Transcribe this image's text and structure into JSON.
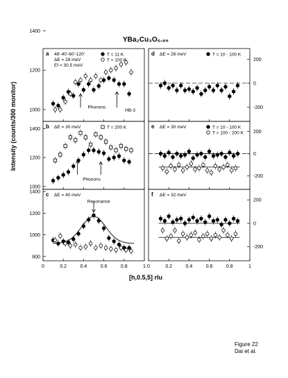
{
  "figure": {
    "title": "YBa₂Cu₃O₆.₉₅",
    "xlabel": "[h,0.5,5] rlu",
    "ylabel": "Intensity (counts/300 monitor)"
  },
  "caption": {
    "figure": "Figure 22",
    "authors": "Dai et al."
  },
  "chart_data": [
    {
      "id": "a",
      "type": "scatter",
      "label": "a",
      "xlim": [
        0,
        1
      ],
      "ylim": [
        940,
        1310
      ],
      "yticks": [
        1000,
        1200,
        1400
      ],
      "axis_side": "left",
      "show_xticklabels": false,
      "notes": [
        "48'-40'-60'-120'",
        "ΔE = 28 meV",
        "Ef = 30.5 meV"
      ],
      "annotations": [
        {
          "text": "Phonons",
          "x": 0.53,
          "y": 1005
        },
        {
          "text": "HB-3",
          "x": 0.86,
          "y": 990
        }
      ],
      "arrows": [
        {
          "x": 0.37,
          "y_from": 1010,
          "y_to": 1080
        },
        {
          "x": 0.73,
          "y_from": 1010,
          "y_to": 1090
        }
      ],
      "legend": [
        {
          "marker": "filled",
          "text": "T = 11 K"
        },
        {
          "marker": "open",
          "text": "T = 100 K"
        }
      ],
      "series": [
        {
          "name": "T = 11 K",
          "marker": "filled",
          "x": [
            0.1,
            0.15,
            0.2,
            0.25,
            0.3,
            0.35,
            0.4,
            0.45,
            0.5,
            0.55,
            0.6,
            0.65,
            0.7,
            0.75,
            0.8,
            0.85
          ],
          "y": [
            1030,
            1020,
            1060,
            1090,
            1070,
            1130,
            1100,
            1130,
            1100,
            1120,
            1150,
            1160,
            1150,
            1130,
            1130,
            1080
          ]
        },
        {
          "name": "T = 100 K",
          "marker": "open",
          "x": [
            0.12,
            0.17,
            0.22,
            0.27,
            0.32,
            0.37,
            0.42,
            0.47,
            0.52,
            0.57,
            0.62,
            0.67,
            0.72,
            0.77,
            0.82,
            0.87
          ],
          "y": [
            1000,
            1000,
            1040,
            1080,
            1140,
            1150,
            1170,
            1150,
            1170,
            1150,
            1190,
            1200,
            1210,
            1230,
            1240,
            1190
          ]
        }
      ]
    },
    {
      "id": "b",
      "type": "scatter",
      "label": "b",
      "xlim": [
        0,
        1
      ],
      "ylim": [
        980,
        1450
      ],
      "yticks": [
        1000,
        1200,
        1400
      ],
      "axis_side": "left",
      "show_xticklabels": false,
      "notes": [
        "ΔE = 30 meV"
      ],
      "annotations": [
        {
          "text": "Phonons",
          "x": 0.48,
          "y": 1040
        }
      ],
      "arrows": [
        {
          "x": 0.34,
          "y_from": 1080,
          "y_to": 1180
        },
        {
          "x": 0.57,
          "y_from": 1080,
          "y_to": 1170
        }
      ],
      "legend": [
        {
          "marker": "open-square",
          "text": "T = 200 K"
        }
      ],
      "series": [
        {
          "name": "T = 11 K",
          "marker": "filled",
          "x": [
            0.1,
            0.15,
            0.2,
            0.25,
            0.3,
            0.35,
            0.4,
            0.45,
            0.5,
            0.55,
            0.6,
            0.65,
            0.7,
            0.75,
            0.8,
            0.85
          ],
          "y": [
            1040,
            1060,
            1080,
            1100,
            1140,
            1180,
            1220,
            1250,
            1250,
            1240,
            1230,
            1190,
            1200,
            1210,
            1180,
            1170
          ]
        },
        {
          "name": "T = 200 K",
          "marker": "open-square",
          "x": [
            0.12,
            0.17,
            0.22,
            0.27,
            0.32,
            0.37,
            0.42,
            0.47,
            0.52,
            0.57,
            0.62,
            0.67,
            0.72,
            0.77,
            0.82,
            0.87
          ],
          "y": [
            1180,
            1220,
            1280,
            1340,
            1320,
            1370,
            1340,
            1290,
            1360,
            1340,
            1310,
            1270,
            1250,
            1280,
            1260,
            1250
          ]
        }
      ]
    },
    {
      "id": "c",
      "type": "scatter",
      "label": "c",
      "xlim": [
        0,
        1
      ],
      "ylim": [
        760,
        1420
      ],
      "yticks": [
        800,
        1000,
        1200,
        1400
      ],
      "xticks": [
        0.0,
        0.2,
        0.4,
        0.6,
        0.8,
        1.0
      ],
      "axis_side": "left",
      "show_xticklabels": true,
      "notes": [
        "ΔE = 40 meV"
      ],
      "annotations": [
        {
          "text": "Resonance",
          "x": 0.55,
          "y": 1295
        }
      ],
      "arrows": [
        {
          "x": 0.5,
          "y_from": 1310,
          "y_to": 1210
        }
      ],
      "fit": {
        "center": 0.5,
        "sigma": 0.12,
        "amplitude": 250,
        "baseline": 920
      },
      "series": [
        {
          "name": "T = 11 K",
          "marker": "filled",
          "x": [
            0.1,
            0.15,
            0.2,
            0.25,
            0.3,
            0.35,
            0.4,
            0.45,
            0.5,
            0.55,
            0.6,
            0.65,
            0.7,
            0.75,
            0.8,
            0.85
          ],
          "y": [
            950,
            920,
            940,
            930,
            960,
            1010,
            1080,
            1140,
            1180,
            1130,
            1060,
            970,
            940,
            910,
            880,
            880
          ]
        },
        {
          "name": "T = 100 K",
          "marker": "open",
          "x": [
            0.12,
            0.17,
            0.22,
            0.27,
            0.32,
            0.37,
            0.42,
            0.47,
            0.52,
            0.57,
            0.62,
            0.67,
            0.72,
            0.77,
            0.82,
            0.87
          ],
          "y": [
            950,
            990,
            920,
            900,
            910,
            880,
            890,
            920,
            880,
            900,
            880,
            870,
            860,
            880,
            860,
            850
          ]
        }
      ]
    },
    {
      "id": "d",
      "type": "scatter",
      "label": "d",
      "xlim": [
        0,
        1
      ],
      "ylim": [
        -320,
        290
      ],
      "yticks": [
        -200,
        0,
        200
      ],
      "axis_side": "right",
      "show_xticklabels": false,
      "zero_line": "dashed",
      "notes": [
        "ΔE = 28 meV"
      ],
      "legend": [
        {
          "marker": "filled",
          "text": "T = 10 - 100 K"
        }
      ],
      "series": [
        {
          "name": "T = 10 - 100 K",
          "marker": "filled",
          "x": [
            0.12,
            0.16,
            0.2,
            0.24,
            0.28,
            0.32,
            0.36,
            0.4,
            0.44,
            0.48,
            0.52,
            0.56,
            0.6,
            0.64,
            0.68,
            0.72,
            0.76,
            0.8,
            0.84,
            0.88
          ],
          "y": [
            -20,
            0,
            -40,
            -20,
            -60,
            -20,
            -60,
            -50,
            -70,
            -40,
            -90,
            -60,
            -30,
            -60,
            -20,
            -60,
            -30,
            -110,
            -70,
            -20
          ]
        }
      ]
    },
    {
      "id": "e",
      "type": "scatter",
      "label": "e",
      "xlim": [
        0,
        1
      ],
      "ylim": [
        -320,
        290
      ],
      "yticks": [
        -200,
        0,
        200
      ],
      "axis_side": "right",
      "show_xticklabels": false,
      "zero_line": "dashed",
      "hlines": [
        {
          "y": 0,
          "x_from": 0.1,
          "x_to": 0.9
        },
        {
          "y": -120,
          "x_from": 0.1,
          "x_to": 0.9
        }
      ],
      "notes": [
        "ΔE = 30 meV"
      ],
      "legend": [
        {
          "marker": "filled",
          "text": "T = 10 - 100 K"
        },
        {
          "marker": "open",
          "text": "T = 100 - 200 K"
        }
      ],
      "series": [
        {
          "name": "T = 10 - 100 K",
          "marker": "filled",
          "x": [
            0.12,
            0.16,
            0.2,
            0.24,
            0.28,
            0.32,
            0.36,
            0.4,
            0.44,
            0.48,
            0.52,
            0.56,
            0.6,
            0.64,
            0.68,
            0.72,
            0.76,
            0.8,
            0.84,
            0.88
          ],
          "y": [
            0,
            -20,
            10,
            -30,
            0,
            -20,
            -10,
            20,
            -40,
            -10,
            0,
            -30,
            20,
            -20,
            -10,
            0,
            -30,
            10,
            -20,
            0
          ]
        },
        {
          "name": "T = 100 - 200 K",
          "marker": "open",
          "x": [
            0.14,
            0.18,
            0.22,
            0.26,
            0.3,
            0.34,
            0.38,
            0.42,
            0.46,
            0.5,
            0.54,
            0.58,
            0.62,
            0.66,
            0.7,
            0.74,
            0.78,
            0.82,
            0.86
          ],
          "y": [
            -130,
            -160,
            -110,
            -140,
            -100,
            -150,
            -120,
            -90,
            -140,
            -130,
            -100,
            -150,
            -170,
            -110,
            -140,
            -120,
            -100,
            -150,
            -130
          ]
        }
      ]
    },
    {
      "id": "f",
      "type": "scatter",
      "label": "f",
      "xlim": [
        0,
        1
      ],
      "ylim": [
        -320,
        290
      ],
      "yticks": [
        -200,
        0,
        200
      ],
      "xticks": [
        0.0,
        0.2,
        0.4,
        0.6,
        0.8,
        1.0
      ],
      "axis_side": "right",
      "show_xticklabels": true,
      "hlines": [
        {
          "y": 0,
          "x_from": 0.1,
          "x_to": 0.9
        },
        {
          "y": -120,
          "x_from": 0.1,
          "x_to": 0.9
        }
      ],
      "notes": [
        "ΔE = 32 meV"
      ],
      "series": [
        {
          "name": "T = 10 - 100 K",
          "marker": "filled",
          "x": [
            0.12,
            0.16,
            0.2,
            0.24,
            0.28,
            0.32,
            0.36,
            0.4,
            0.44,
            0.48,
            0.52,
            0.56,
            0.6,
            0.64,
            0.68,
            0.72,
            0.76,
            0.8,
            0.84,
            0.88
          ],
          "y": [
            40,
            20,
            60,
            10,
            30,
            40,
            0,
            30,
            50,
            20,
            40,
            10,
            60,
            20,
            30,
            -10,
            30,
            0,
            40,
            20
          ]
        },
        {
          "name": "T = 100 - 200 K",
          "marker": "open",
          "x": [
            0.14,
            0.18,
            0.22,
            0.26,
            0.3,
            0.34,
            0.38,
            0.42,
            0.46,
            0.5,
            0.54,
            0.58,
            0.62,
            0.66,
            0.7,
            0.74,
            0.78,
            0.82,
            0.86
          ],
          "y": [
            -60,
            -130,
            -110,
            -60,
            -150,
            -90,
            -120,
            -100,
            -80,
            -140,
            -110,
            -90,
            -130,
            -100,
            -120,
            -60,
            -100,
            -130,
            -90
          ]
        }
      ]
    }
  ]
}
